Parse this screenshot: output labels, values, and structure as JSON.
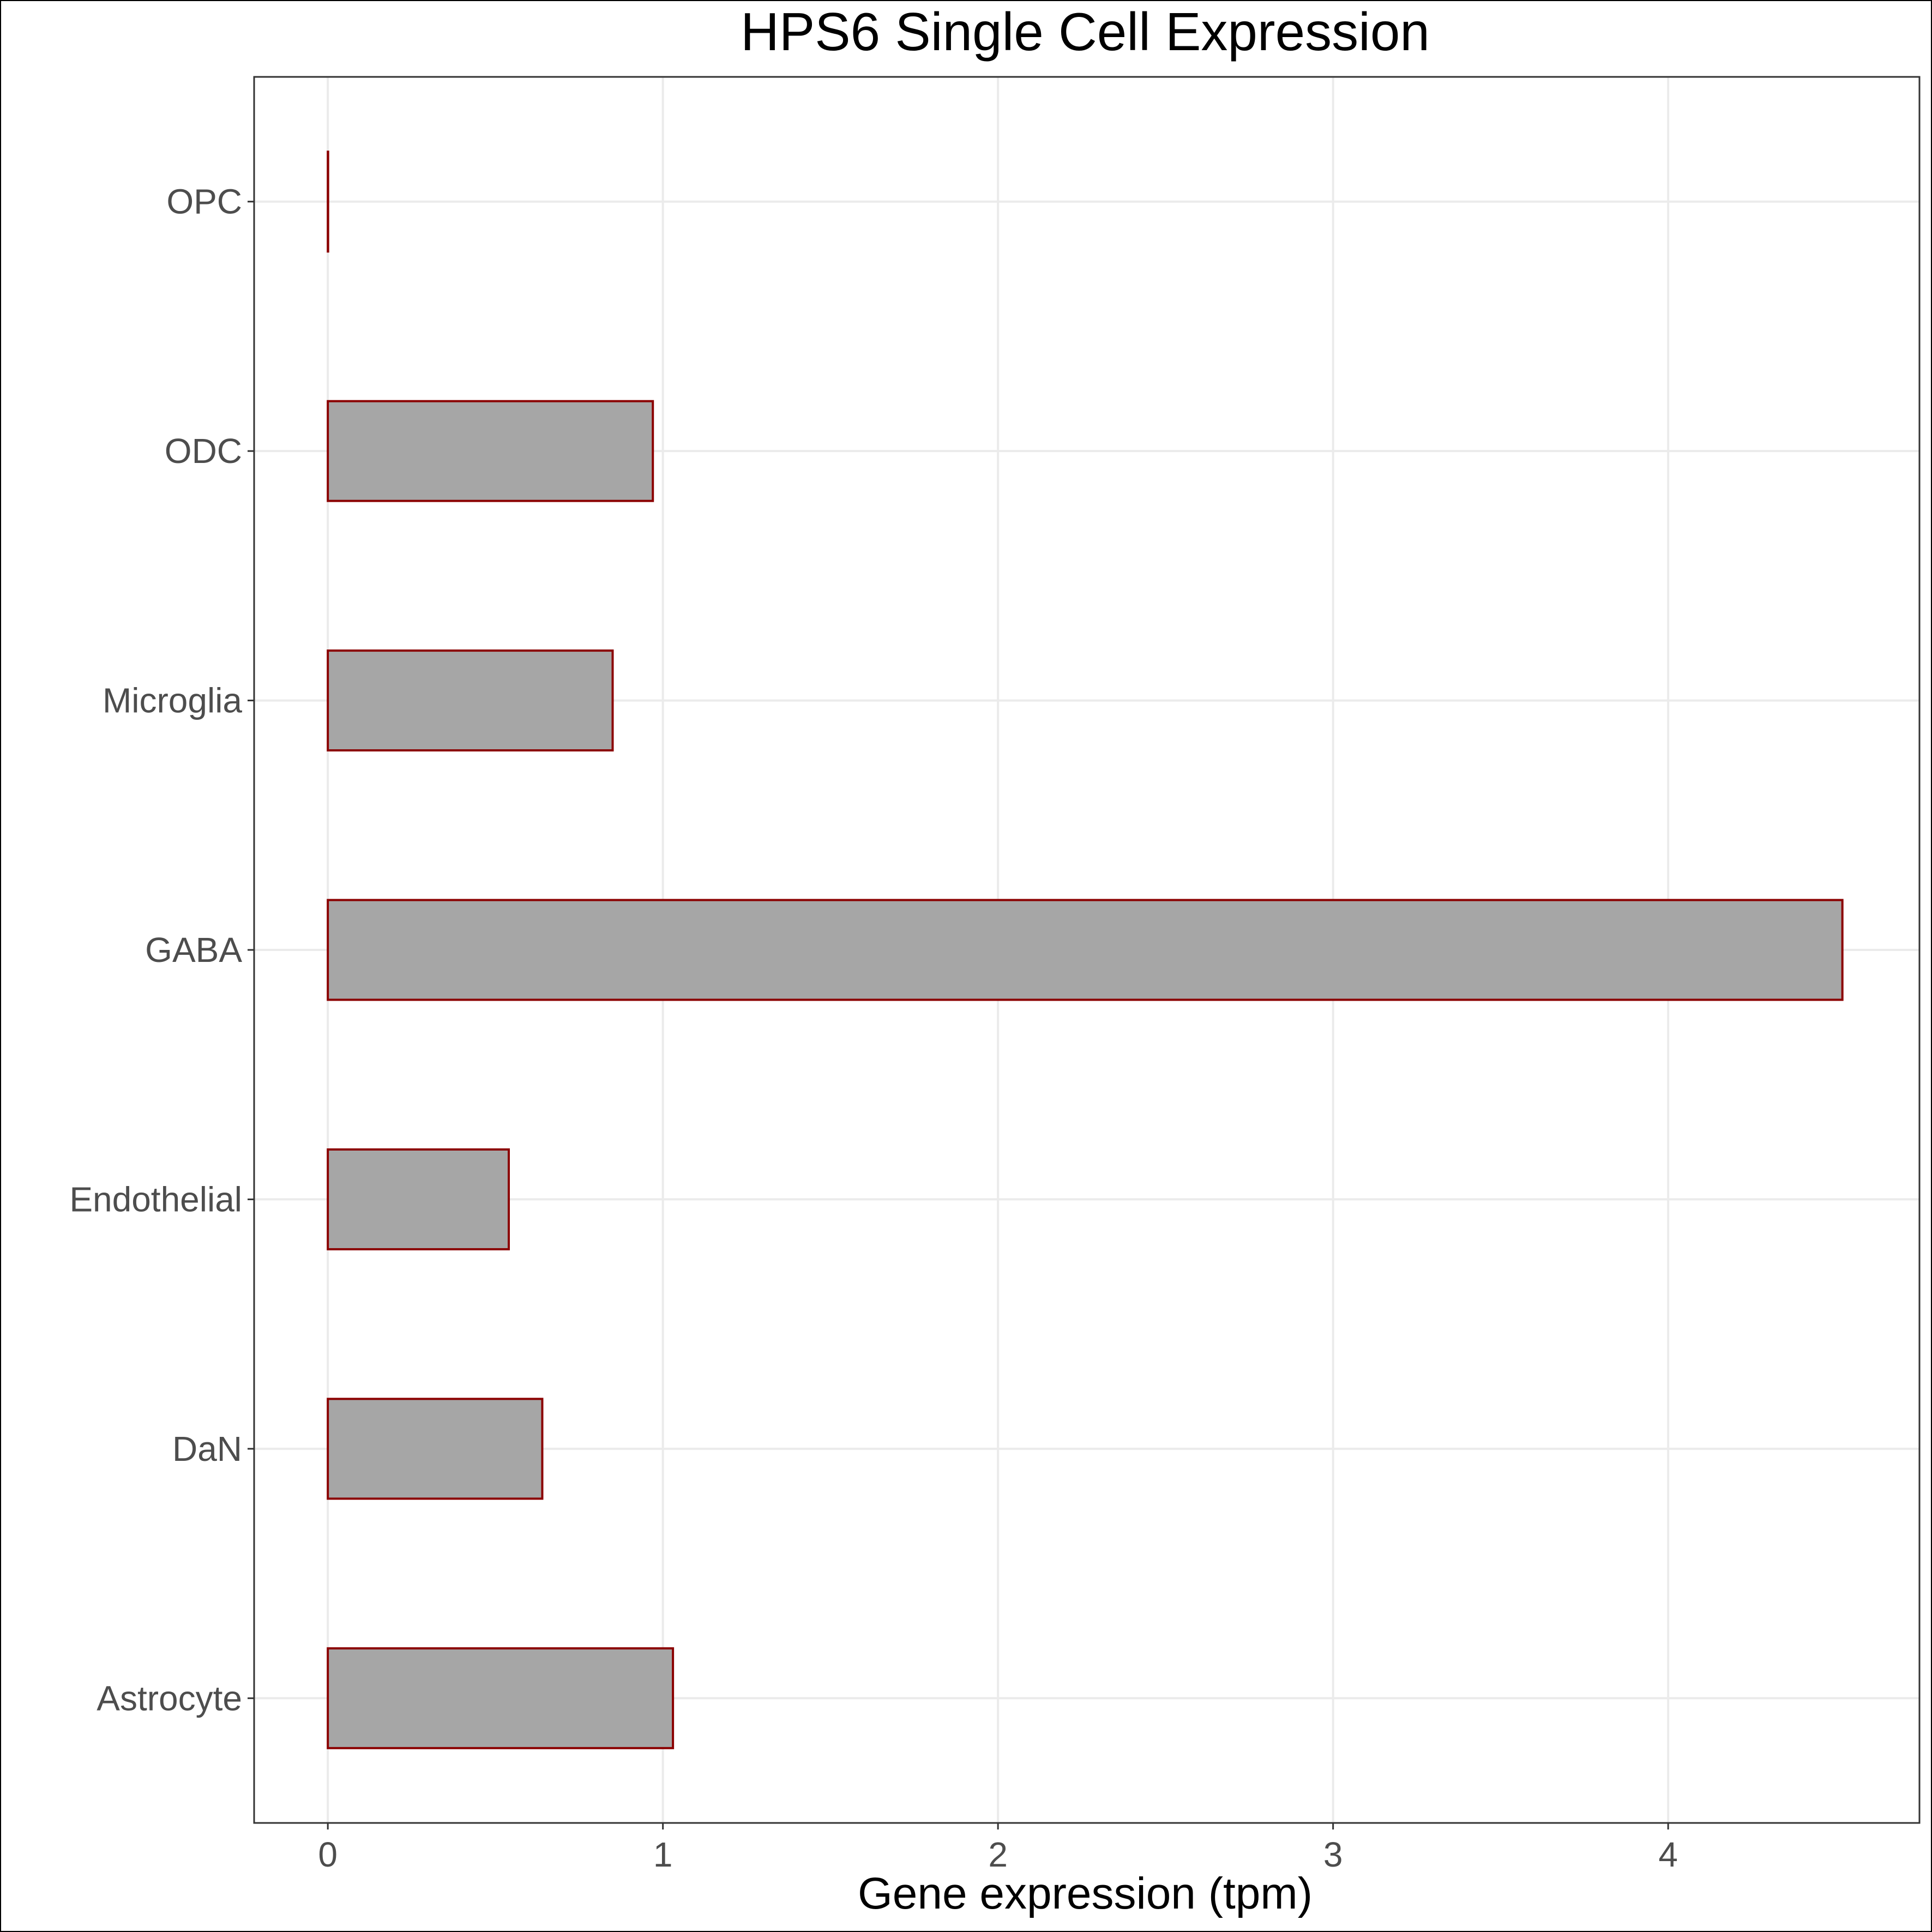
{
  "chart_data": {
    "type": "bar",
    "orientation": "horizontal",
    "title": "HPS6 Single Cell Expression",
    "xlabel": "Gene expression (tpm)",
    "ylabel": "",
    "categories": [
      "Astrocyte",
      "DaN",
      "Endothelial",
      "GABA",
      "Microglia",
      "ODC",
      "OPC"
    ],
    "values": [
      1.03,
      0.64,
      0.54,
      4.52,
      0.85,
      0.97,
      0.0
    ],
    "xlim": [
      -0.22,
      4.75
    ],
    "xticks": [
      0,
      1,
      2,
      3,
      4
    ],
    "grid": true,
    "legend": "none",
    "colors": {
      "bar_fill": "#a6a6a6",
      "bar_stroke": "#8b0000",
      "grid": "#ebebeb",
      "panel_border": "#333333"
    }
  }
}
